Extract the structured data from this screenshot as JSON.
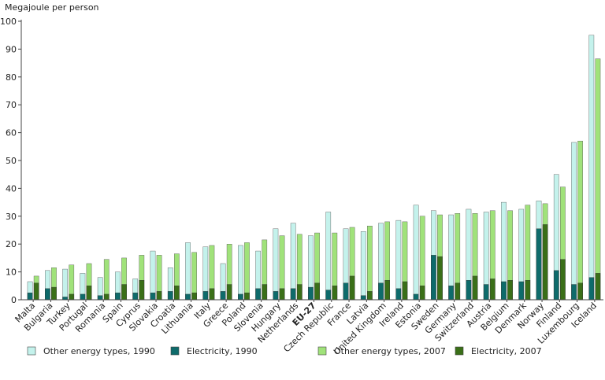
{
  "chart_data": {
    "type": "bar",
    "ylabel": "Megajoule per person",
    "ylim": [
      0,
      100
    ],
    "yticks": [
      0,
      10,
      20,
      30,
      40,
      50,
      60,
      70,
      80,
      90,
      100
    ],
    "grid": false,
    "legend_position": "bottom",
    "bold_categories": [
      "EU-27"
    ],
    "categories": [
      "Malta",
      "Bulgaria",
      "Turkey",
      "Portugal",
      "Romania",
      "Spain",
      "Cyprus",
      "Slovakia",
      "Croatia",
      "Lithuania",
      "Italy",
      "Greece",
      "Poland",
      "Slovenia",
      "Hungary",
      "Netherlands",
      "EU-27",
      "Czech Republic",
      "France",
      "Latvia",
      "United Kingdom",
      "Ireland",
      "Estonia",
      "Sweden",
      "Germany",
      "Switzerland",
      "Austria",
      "Belgium",
      "Denmark",
      "Norway",
      "Finland",
      "Luxembourg",
      "Iceland"
    ],
    "series": [
      {
        "name": "Other energy types, 1990",
        "year": "1990",
        "kind": "total",
        "color": "#c4f2ec",
        "values": [
          6.5,
          10.5,
          11,
          9.5,
          8,
          10,
          7.5,
          17.5,
          11.5,
          20.5,
          19,
          13,
          19.5,
          17.5,
          25.5,
          27.5,
          23,
          31.5,
          25.5,
          24.5,
          27.5,
          28.5,
          34,
          32,
          30.5,
          32.5,
          31.5,
          35,
          32.5,
          35.5,
          45,
          56.5,
          95
        ]
      },
      {
        "name": "Electricity, 1990",
        "year": "1990",
        "kind": "part",
        "color": "#0e6b6b",
        "values": [
          2.5,
          4,
          1,
          2,
          1.5,
          2.5,
          2.5,
          2.5,
          3,
          2,
          3,
          3,
          2,
          4,
          3,
          4,
          4.5,
          3.5,
          6,
          1.5,
          6,
          4,
          2,
          16,
          5,
          7,
          5.5,
          6.5,
          6.5,
          25.5,
          10.5,
          5.5,
          8
        ]
      },
      {
        "name": "Other energy types, 2007",
        "year": "2007",
        "kind": "total",
        "color": "#a0e27a",
        "values": [
          8.5,
          11.5,
          12.5,
          13,
          14.5,
          15,
          16,
          16,
          16.5,
          17,
          19.5,
          20,
          20.5,
          21.5,
          23,
          23.5,
          24,
          24,
          26,
          26.5,
          28,
          28,
          30,
          30.5,
          31,
          31,
          32,
          32,
          34,
          34.5,
          40.5,
          57,
          86.5
        ]
      },
      {
        "name": "Electricity, 2007",
        "year": "2007",
        "kind": "part",
        "color": "#3a6f18",
        "values": [
          6,
          4.5,
          2,
          5,
          2,
          5.5,
          7,
          3,
          5,
          2.5,
          4,
          5.5,
          2.5,
          5.5,
          4,
          5.5,
          6,
          5,
          8.5,
          3,
          7,
          6.5,
          5,
          15.5,
          6,
          8.5,
          7.5,
          7,
          7,
          27,
          14.5,
          6,
          9.5
        ]
      }
    ]
  }
}
